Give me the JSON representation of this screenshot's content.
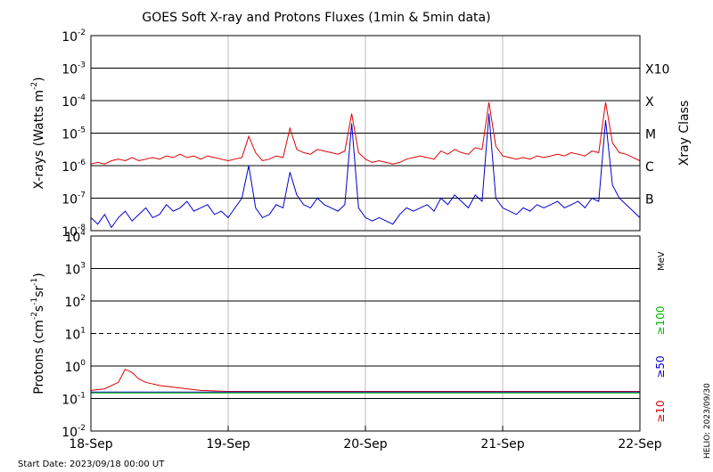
{
  "chart_data": {
    "type": "line",
    "title": "GOES Soft X-ray and Protons Fluxes   (1min & 5min data)",
    "start_date_label": "Start Date: 2023/09/18 00:00 UT",
    "side_stamp": "HELIO: 2023/09/30",
    "x_tick_labels": [
      "18-Sep",
      "19-Sep",
      "20-Sep",
      "21-Sep",
      "22-Sep"
    ],
    "xlim_days": [
      0,
      4
    ],
    "panels": [
      {
        "id": "xray",
        "ylabel_main": "X-rays (Watts m",
        "ylabel_exp": "-2",
        "ylabel_end": ")",
        "yscale": "log",
        "ylim_exp": [
          -8,
          -2
        ],
        "y_tick_exponents": [
          -2,
          -3,
          -4,
          -5,
          -6,
          -7,
          -8
        ],
        "y_tick_base": "10",
        "right_title": "Xray Class",
        "class_labels": [
          {
            "label": "X10",
            "exp": -3
          },
          {
            "label": "X",
            "exp": -4
          },
          {
            "label": "M",
            "exp": -5
          },
          {
            "label": "C",
            "exp": -6
          },
          {
            "label": "B",
            "exp": -7
          }
        ],
        "series": [
          {
            "color": "#dd0000",
            "x": [
              0,
              0.05,
              0.1,
              0.15,
              0.2,
              0.25,
              0.3,
              0.35,
              0.4,
              0.45,
              0.5,
              0.55,
              0.6,
              0.65,
              0.7,
              0.75,
              0.8,
              0.85,
              0.9,
              0.95,
              1.0,
              1.05,
              1.1,
              1.15,
              1.2,
              1.25,
              1.3,
              1.35,
              1.4,
              1.45,
              1.5,
              1.55,
              1.6,
              1.65,
              1.7,
              1.75,
              1.8,
              1.85,
              1.9,
              1.95,
              2.0,
              2.05,
              2.1,
              2.15,
              2.2,
              2.25,
              2.3,
              2.35,
              2.4,
              2.45,
              2.5,
              2.55,
              2.6,
              2.65,
              2.7,
              2.75,
              2.8,
              2.85,
              2.9,
              2.95,
              3.0,
              3.05,
              3.1,
              3.15,
              3.2,
              3.25,
              3.3,
              3.35,
              3.4,
              3.45,
              3.5,
              3.55,
              3.6,
              3.65,
              3.7,
              3.75,
              3.8,
              3.85,
              3.9,
              3.95,
              4.0
            ],
            "y_exp": [
              -5.95,
              -5.9,
              -5.95,
              -5.85,
              -5.8,
              -5.85,
              -5.75,
              -5.85,
              -5.8,
              -5.75,
              -5.8,
              -5.7,
              -5.75,
              -5.65,
              -5.75,
              -5.7,
              -5.8,
              -5.7,
              -5.75,
              -5.8,
              -5.85,
              -5.8,
              -5.75,
              -5.1,
              -5.6,
              -5.85,
              -5.8,
              -5.7,
              -5.75,
              -4.85,
              -5.5,
              -5.6,
              -5.65,
              -5.5,
              -5.55,
              -5.6,
              -5.65,
              -5.55,
              -4.4,
              -5.6,
              -5.8,
              -5.9,
              -5.85,
              -5.9,
              -5.95,
              -5.9,
              -5.8,
              -5.75,
              -5.7,
              -5.75,
              -5.8,
              -5.55,
              -5.65,
              -5.5,
              -5.6,
              -5.65,
              -5.45,
              -5.5,
              -4.05,
              -5.4,
              -5.7,
              -5.75,
              -5.8,
              -5.75,
              -5.8,
              -5.7,
              -5.75,
              -5.7,
              -5.65,
              -5.7,
              -5.6,
              -5.65,
              -5.7,
              -5.55,
              -5.6,
              -4.05,
              -5.3,
              -5.6,
              -5.65,
              -5.75,
              -5.85
            ]
          },
          {
            "color": "#0000cc",
            "x": [
              0,
              0.05,
              0.1,
              0.15,
              0.2,
              0.25,
              0.3,
              0.35,
              0.4,
              0.45,
              0.5,
              0.55,
              0.6,
              0.65,
              0.7,
              0.75,
              0.8,
              0.85,
              0.9,
              0.95,
              1.0,
              1.05,
              1.1,
              1.15,
              1.2,
              1.25,
              1.3,
              1.35,
              1.4,
              1.45,
              1.5,
              1.55,
              1.6,
              1.65,
              1.7,
              1.75,
              1.8,
              1.85,
              1.9,
              1.95,
              2.0,
              2.05,
              2.1,
              2.15,
              2.2,
              2.25,
              2.3,
              2.35,
              2.4,
              2.45,
              2.5,
              2.55,
              2.6,
              2.65,
              2.7,
              2.75,
              2.8,
              2.85,
              2.9,
              2.95,
              3.0,
              3.05,
              3.1,
              3.15,
              3.2,
              3.25,
              3.3,
              3.35,
              3.4,
              3.45,
              3.5,
              3.55,
              3.6,
              3.65,
              3.7,
              3.75,
              3.8,
              3.85,
              3.9,
              3.95,
              4.0
            ],
            "y_exp": [
              -7.6,
              -7.8,
              -7.5,
              -7.9,
              -7.6,
              -7.4,
              -7.7,
              -7.5,
              -7.3,
              -7.6,
              -7.5,
              -7.2,
              -7.4,
              -7.3,
              -7.1,
              -7.4,
              -7.3,
              -7.2,
              -7.5,
              -7.4,
              -7.6,
              -7.3,
              -7.0,
              -6.0,
              -7.3,
              -7.6,
              -7.5,
              -7.2,
              -7.3,
              -6.2,
              -6.9,
              -7.2,
              -7.3,
              -7.0,
              -7.2,
              -7.3,
              -7.4,
              -7.2,
              -4.7,
              -7.3,
              -7.6,
              -7.7,
              -7.6,
              -7.7,
              -7.8,
              -7.5,
              -7.3,
              -7.4,
              -7.3,
              -7.2,
              -7.4,
              -7.0,
              -7.2,
              -6.9,
              -7.1,
              -7.3,
              -6.9,
              -7.1,
              -4.4,
              -7.0,
              -7.3,
              -7.4,
              -7.5,
              -7.3,
              -7.4,
              -7.2,
              -7.3,
              -7.2,
              -7.1,
              -7.3,
              -7.2,
              -7.1,
              -7.3,
              -7.0,
              -7.1,
              -4.6,
              -6.6,
              -7.0,
              -7.2,
              -7.4,
              -7.6
            ]
          }
        ]
      },
      {
        "id": "protons",
        "ylabel_main": "Protons (cm",
        "ylabel_exp_parts": [
          "-2",
          "s",
          "-1",
          "sr",
          "-1"
        ],
        "ylabel_end": ")",
        "yscale": "log",
        "ylim_exp": [
          -2,
          4
        ],
        "y_tick_exponents": [
          4,
          3,
          2,
          1,
          0,
          -1,
          -2
        ],
        "y_tick_base": "10",
        "dashed_level_exp": 1,
        "right_unit": "MeV",
        "energy_labels": [
          {
            "label": "≥100",
            "color": "#00bb00"
          },
          {
            "label": "≥50",
            "color": "#0000cc"
          },
          {
            "label": "≥10",
            "color": "#dd0000"
          }
        ],
        "series": [
          {
            "color": "#dd0000",
            "x": [
              0,
              0.1,
              0.2,
              0.25,
              0.3,
              0.35,
              0.4,
              0.5,
              0.6,
              0.7,
              0.8,
              1.0,
              1.5,
              2.0,
              2.5,
              3.0,
              3.5,
              4.0
            ],
            "y_exp": [
              -0.75,
              -0.7,
              -0.5,
              -0.1,
              -0.2,
              -0.4,
              -0.5,
              -0.6,
              -0.65,
              -0.7,
              -0.75,
              -0.78,
              -0.78,
              -0.78,
              -0.78,
              -0.78,
              -0.78,
              -0.78
            ]
          },
          {
            "color": "#0000cc",
            "x": [
              0,
              0.5,
              1.0,
              1.5,
              2.0,
              2.5,
              3.0,
              3.5,
              4.0
            ],
            "y_exp": [
              -0.8,
              -0.8,
              -0.8,
              -0.8,
              -0.8,
              -0.8,
              -0.8,
              -0.8,
              -0.8
            ]
          },
          {
            "color": "#00bb00",
            "x": [
              0,
              0.5,
              1.0,
              1.5,
              2.0,
              2.5,
              3.0,
              3.5,
              4.0
            ],
            "y_exp": [
              -0.83,
              -0.83,
              -0.83,
              -0.83,
              -0.83,
              -0.83,
              -0.83,
              -0.83,
              -0.83
            ]
          }
        ]
      }
    ]
  }
}
